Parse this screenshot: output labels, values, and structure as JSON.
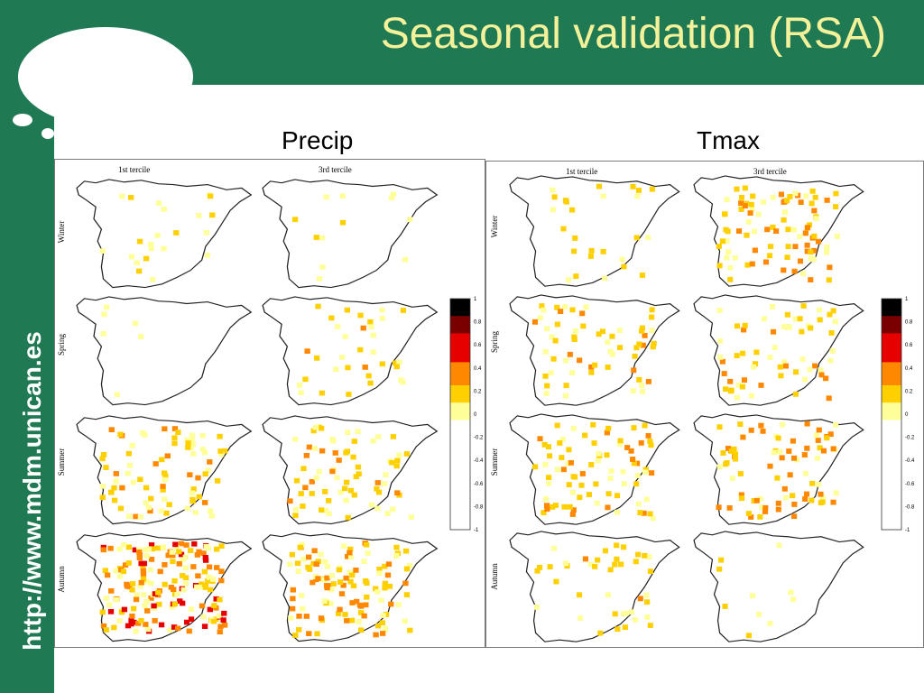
{
  "header": {
    "title": "Seasonal validation (RSA)"
  },
  "sidebar": {
    "url": "http://www.mdm.unican.es"
  },
  "panels": [
    {
      "label": "Precip",
      "col_titles": [
        "1st tercile",
        "3rd tercile"
      ],
      "row_labels": [
        "Winter",
        "Spring",
        "Summer",
        "Autumn"
      ]
    },
    {
      "label": "Tmax",
      "col_titles": [
        "1st tercile",
        "3rd tercile"
      ],
      "row_labels": [
        "Winter",
        "Spring",
        "Summer",
        "Autumn"
      ]
    }
  ],
  "colorbar": {
    "ticks": [
      "1",
      "0.8",
      "0.6",
      "0.4",
      "0.2",
      "0",
      "-0.2",
      "-0.4",
      "-0.6",
      "-0.8",
      "-1"
    ],
    "colors": [
      "#000000",
      "#7a0000",
      "#e60000",
      "#ff8800",
      "#ffd000",
      "#ffff99",
      "#ffffff"
    ]
  },
  "colors": {
    "band": "#1f7a54",
    "title": "#f4f19a"
  }
}
